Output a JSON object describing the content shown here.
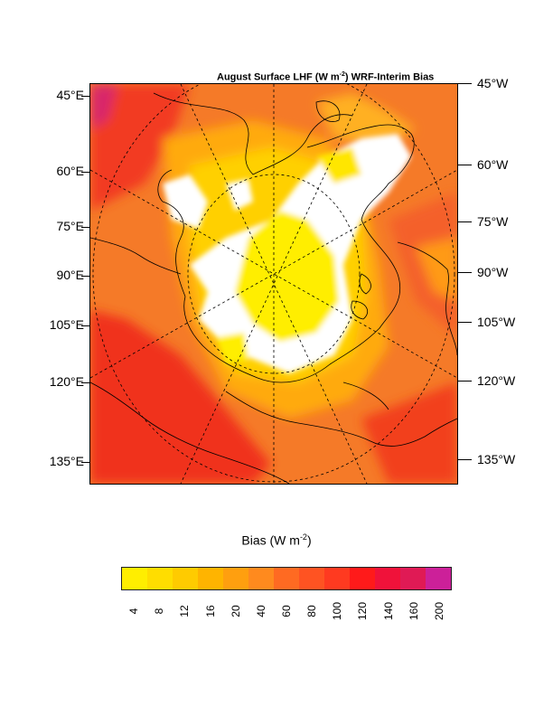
{
  "title": {
    "prefix": "August Surface LHF (W m",
    "sup": "-2",
    "suffix": ") WRF-Interim Bias"
  },
  "left_labels": [
    "45°E",
    "60°E",
    "75°E",
    "90°E",
    "105°E",
    "120°E",
    "135°E"
  ],
  "right_labels": [
    "45°W",
    "60°W",
    "75°W",
    "90°W",
    "105°W",
    "120°W",
    "135°W"
  ],
  "colorbar": {
    "title_prefix": "Bias (W m",
    "title_sup": "-2",
    "title_suffix": ")",
    "levels": [
      "4",
      "8",
      "12",
      "16",
      "20",
      "40",
      "60",
      "80",
      "100",
      "120",
      "140",
      "160",
      "200"
    ],
    "colors": [
      "#ffee00",
      "#ffdd00",
      "#ffcb00",
      "#ffb400",
      "#ff9f0f",
      "#ff8a1e",
      "#ff6a22",
      "#ff5322",
      "#ff3a20",
      "#ff1a1a",
      "#f0123a",
      "#e01a55",
      "#cc2099"
    ]
  }
}
